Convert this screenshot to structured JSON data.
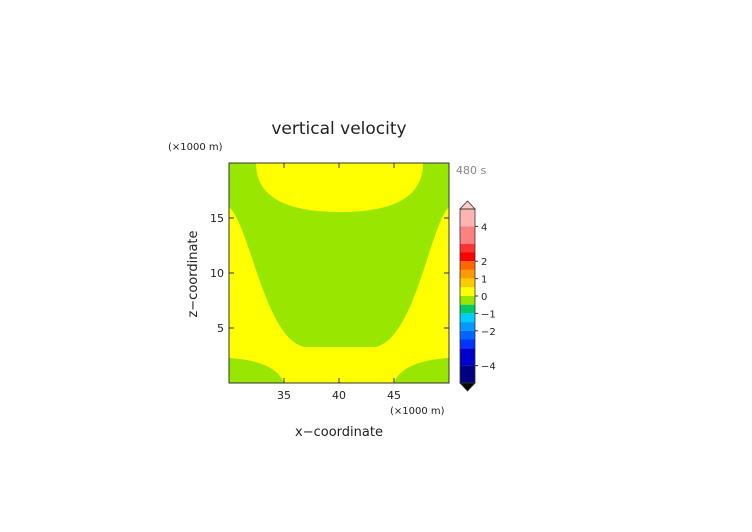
{
  "chart_data": {
    "type": "heatmap",
    "title": "vertical velocity",
    "time_label": "480 s",
    "xlabel": "x−coordinate",
    "ylabel": "z−coordinate",
    "x_unit": "(×1000 m)",
    "y_unit": "(×1000 m)",
    "xlim": [
      30,
      50
    ],
    "ylim": [
      0,
      20
    ],
    "xticks": [
      35,
      40,
      45
    ],
    "yticks": [
      5,
      10,
      15
    ],
    "fields": [
      {
        "name": "0 to 0.5",
        "color": "#ffff00"
      },
      {
        "name": "-0.5 to 0",
        "color": "#99e600"
      }
    ],
    "colorbar": {
      "labels": [
        "4",
        "2",
        "1",
        "0",
        "−1",
        "−2",
        "−4"
      ],
      "label_values": [
        4,
        2,
        1,
        0,
        -1,
        -2,
        -4
      ],
      "bands": [
        {
          "from": 4.0,
          "to": 5.0,
          "color": "#ffb3b3"
        },
        {
          "from": 3.0,
          "to": 4.0,
          "color": "#ff8080"
        },
        {
          "from": 2.5,
          "to": 3.0,
          "color": "#ff3333"
        },
        {
          "from": 2.0,
          "to": 2.5,
          "color": "#ff0000"
        },
        {
          "from": 1.5,
          "to": 2.0,
          "color": "#ff6600"
        },
        {
          "from": 1.0,
          "to": 1.5,
          "color": "#ff9900"
        },
        {
          "from": 0.5,
          "to": 1.0,
          "color": "#ffcc00"
        },
        {
          "from": 0.0,
          "to": 0.5,
          "color": "#ffff00"
        },
        {
          "from": -0.5,
          "to": 0.0,
          "color": "#99e600"
        },
        {
          "from": -1.0,
          "to": -0.5,
          "color": "#00cc66"
        },
        {
          "from": -1.5,
          "to": -1.0,
          "color": "#00ccff"
        },
        {
          "from": -2.0,
          "to": -1.5,
          "color": "#0099ff"
        },
        {
          "from": -2.5,
          "to": -2.0,
          "color": "#0066ff"
        },
        {
          "from": -3.0,
          "to": -2.5,
          "color": "#0033ff"
        },
        {
          "from": -4.0,
          "to": -3.0,
          "color": "#0000cc"
        },
        {
          "from": -5.0,
          "to": -4.0,
          "color": "#000080"
        }
      ],
      "range": [
        -5,
        5
      ],
      "over_color": "#ffcccc",
      "under_color": "#000000"
    }
  }
}
